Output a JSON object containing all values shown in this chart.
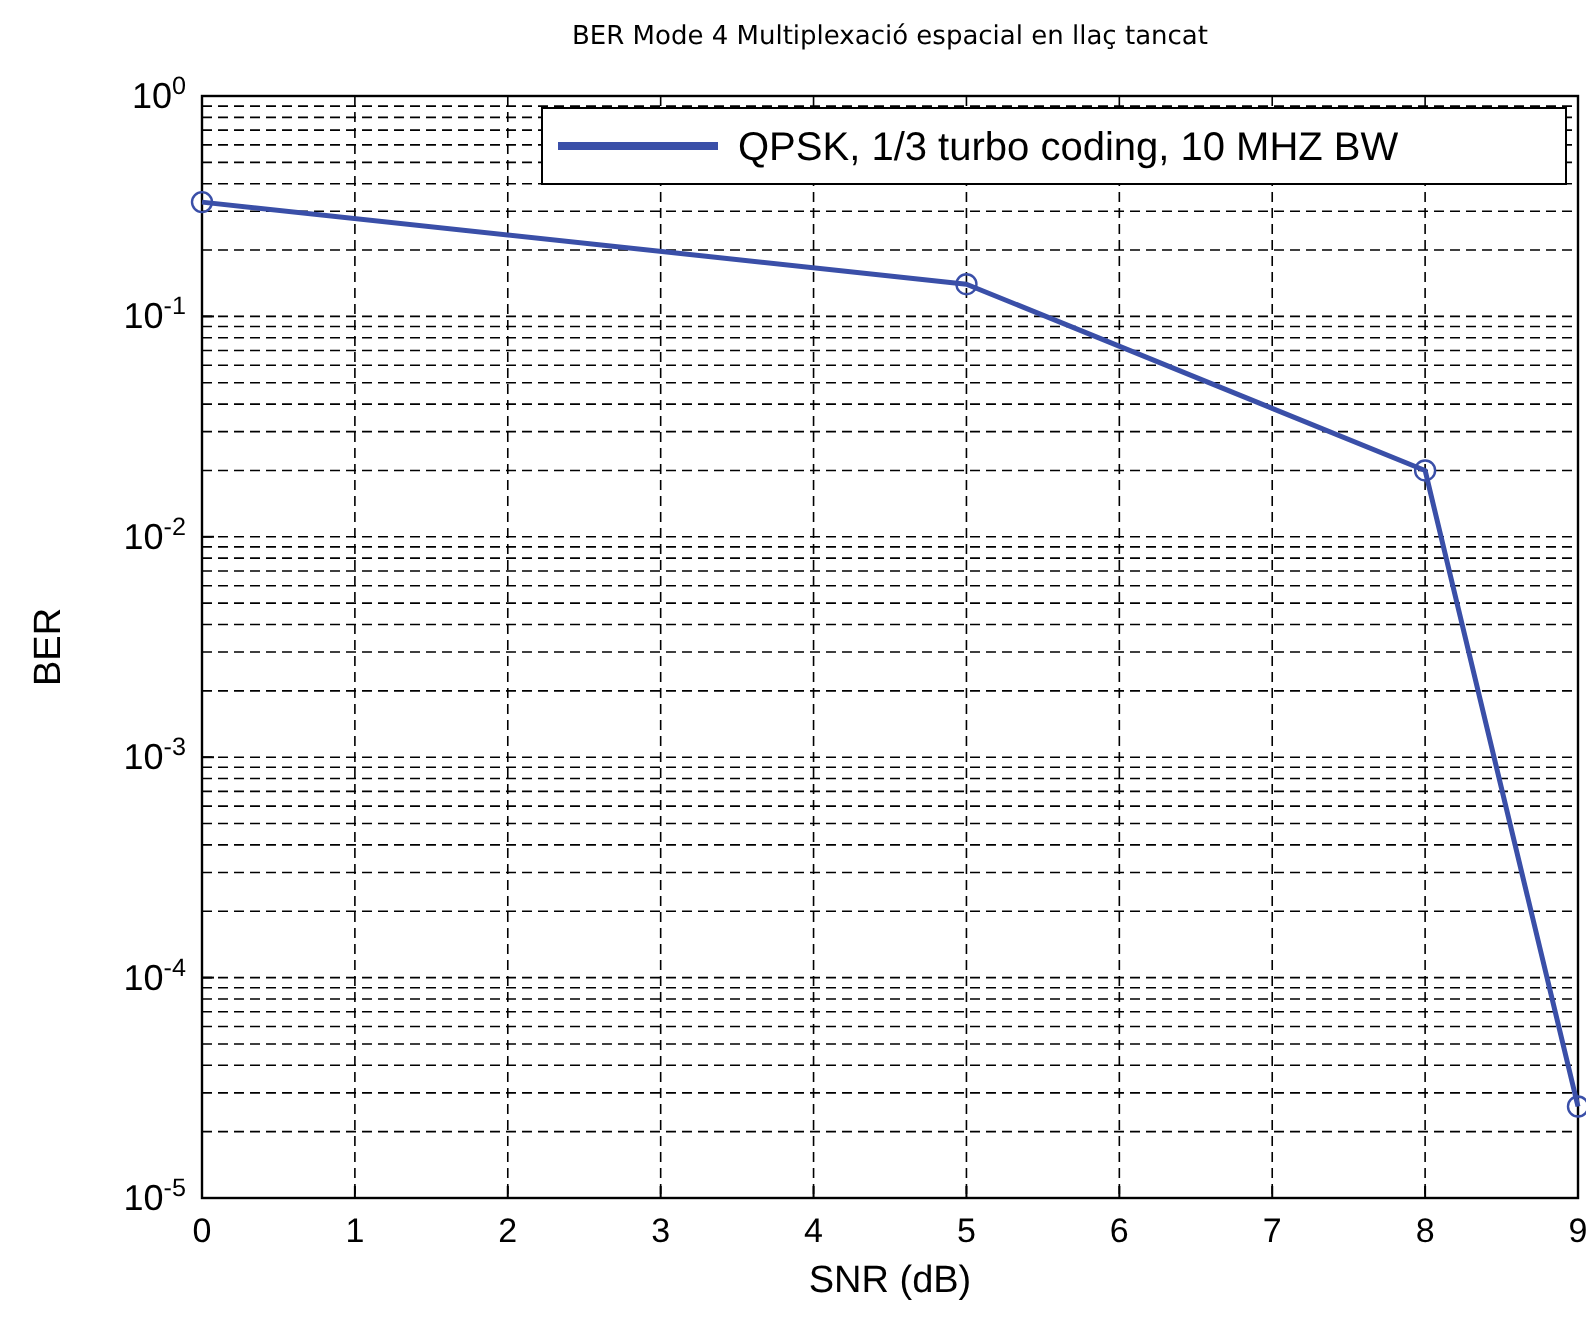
{
  "chart_data": {
    "type": "line",
    "title": "BER Mode 4 Multiplexació espacial en llaç tancat",
    "xlabel": "SNR (dB)",
    "ylabel": "BER",
    "x": [
      0,
      5,
      8,
      9
    ],
    "series": [
      {
        "name": "QPSK, 1/3 turbo coding, 10 MHZ BW",
        "color": "#3a4fa8",
        "values": [
          0.33,
          0.14,
          0.02,
          2.6e-05
        ]
      }
    ],
    "xlim": [
      0,
      9
    ],
    "xticks": [
      0,
      1,
      2,
      3,
      4,
      5,
      6,
      7,
      8,
      9
    ],
    "ylim": [
      1e-05,
      1
    ],
    "yticks": [
      {
        "value": 1,
        "label": "10$^{0}$"
      },
      {
        "value": 0.1,
        "label": "10$^{-1}$"
      },
      {
        "value": 0.01,
        "label": "10$^{-2}$"
      },
      {
        "value": 0.001,
        "label": "10$^{-3}$"
      },
      {
        "value": 0.0001,
        "label": "10$^{-4}$"
      },
      {
        "value": 1e-05,
        "label": "10$^{-5}$"
      }
    ],
    "log": "y",
    "grid": true,
    "legend": "top right",
    "marker": "circle",
    "line_style": "solid"
  }
}
